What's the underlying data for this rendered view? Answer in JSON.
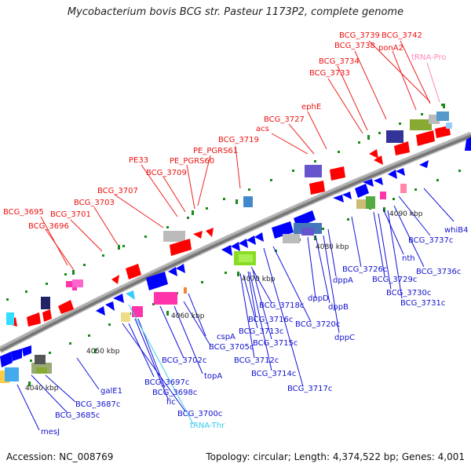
{
  "title": "Mycobacterium bovis BCG str. Pasteur 1173P2, complete genome",
  "accession": "Accession: NC_008769",
  "topology": "Topology: circular; Length: 4,374,522 bp; Genes: 4,001",
  "colors": {
    "backbone": "#888888",
    "forward_gene": "#ff0000",
    "reverse_gene": "#0000ff",
    "trna_forward": "#ff88bb",
    "trna_reverse": "#33ccff",
    "tick": "#008000"
  },
  "scale_labels": [
    "4040 kbp",
    "4050 kbp",
    "4060 kbp",
    "4070 kbp",
    "4080 kbp",
    "4090 kbp"
  ],
  "forward_labels": [
    "BCG_3739",
    "BCG_3742",
    "BCG_3738",
    "ponA2",
    "tRNA-Pro",
    "BCG_3734",
    "BCG_3733",
    "ephE",
    "BCG_3727",
    "acs",
    "BCG_3719",
    "PE_PGRS61",
    "PE33",
    "PE_PGRS60",
    "BCG_3709",
    "BCG_3707",
    "BCG_3703",
    "BCG_3695",
    "BCG_3701",
    "BCG_3696"
  ],
  "reverse_labels": [
    "whiB4",
    "BCG_3737c",
    "BCG_3736c",
    "nth",
    "BCG_3729c",
    "BCG_3730c",
    "BCG_3731c",
    "BCG_3726c",
    "dppA",
    "dppB",
    "dppD",
    "dppC",
    "BCG_3718c",
    "BCG_3713c",
    "BCG_3716c",
    "BCG_3715c",
    "BCG_3720c",
    "BCG_3712c",
    "BCG_3714c",
    "BCG_3717c",
    "cspA",
    "BCG_3705c",
    "BCG_3702c",
    "topA",
    "BCG_3697c",
    "BCG_3698c",
    "fic",
    "BCG_3700c",
    "tRNA-Thr",
    "galE1",
    "BCG_3687c",
    "BCG_3685c",
    "mesJ"
  ]
}
